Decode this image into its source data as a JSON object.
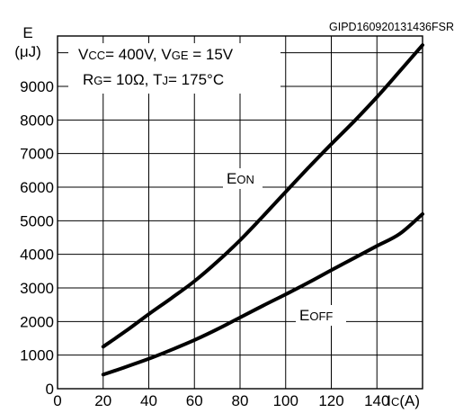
{
  "figure_code": "GIPD160920131436FSR",
  "conditions": {
    "line1": "Vcc= 400V, VGE = 15V",
    "line1_parts": [
      {
        "t": "V",
        "s": false
      },
      {
        "t": "CC",
        "s": true
      },
      {
        "t": "= 400V, V",
        "s": false
      },
      {
        "t": "GE",
        "s": true
      },
      {
        "t": " = 15V",
        "s": false
      }
    ],
    "line2_parts": [
      {
        "t": "R",
        "s": false
      },
      {
        "t": "G",
        "s": true
      },
      {
        "t": "= 10Ω, T",
        "s": false
      },
      {
        "t": "J",
        "s": true
      },
      {
        "t": "= 175°C",
        "s": false
      }
    ]
  },
  "chart_data": {
    "type": "line",
    "xlabel_parts": [
      {
        "t": "I",
        "s": false
      },
      {
        "t": "C",
        "s": true
      },
      {
        "t": "(A)",
        "s": false
      }
    ],
    "ylabel_top": "E",
    "ylabel_unit": "(μJ)",
    "xlim": [
      0,
      160
    ],
    "ylim": [
      0,
      10500
    ],
    "x_ticks": [
      "0",
      "20",
      "40",
      "60",
      "80",
      "100",
      "120",
      "140"
    ],
    "x_tick_values": [
      0,
      20,
      40,
      60,
      80,
      100,
      120,
      140
    ],
    "y_ticks": [
      "0",
      "1000",
      "2000",
      "3000",
      "4000",
      "5000",
      "6000",
      "7000",
      "8000",
      "9000"
    ],
    "y_tick_values": [
      0,
      1000,
      2000,
      3000,
      4000,
      5000,
      6000,
      7000,
      8000,
      9000
    ],
    "grid": true,
    "series": [
      {
        "name": "Eon",
        "label_parts": [
          {
            "t": "E",
            "s": false
          },
          {
            "t": "ON",
            "s": true
          }
        ],
        "x": [
          20,
          30,
          40,
          50,
          60,
          70,
          80,
          90,
          100,
          110,
          120,
          130,
          140,
          150,
          160
        ],
        "y": [
          1250,
          1720,
          2220,
          2700,
          3200,
          3780,
          4420,
          5130,
          5860,
          6580,
          7280,
          7960,
          8680,
          9450,
          10230
        ]
      },
      {
        "name": "Eoff",
        "label_parts": [
          {
            "t": "E",
            "s": false
          },
          {
            "t": "OFF",
            "s": true
          }
        ],
        "x": [
          20,
          30,
          40,
          50,
          60,
          70,
          80,
          90,
          100,
          110,
          120,
          130,
          140,
          150,
          160
        ],
        "y": [
          420,
          650,
          890,
          1160,
          1450,
          1770,
          2120,
          2470,
          2810,
          3160,
          3530,
          3890,
          4250,
          4610,
          5200
        ]
      }
    ]
  }
}
